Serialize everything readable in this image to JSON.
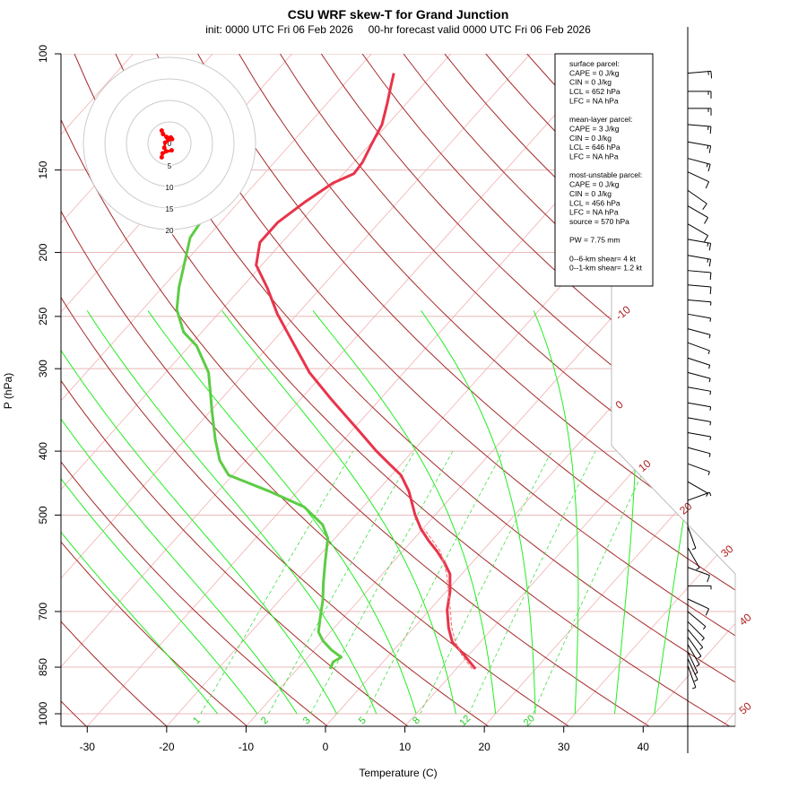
{
  "chart_data": {
    "type": "line",
    "subtype": "skew-T log-p",
    "title": "CSU WRF skew-T for Grand Junction",
    "subtitle": "init: 0000 UTC Fri 06 Feb 2026     00-hr forecast valid 0000 UTC Fri 06 Feb 2026",
    "xlabel": "Temperature (C)",
    "ylabel": "P (hPa)",
    "x_ticks": [
      -30,
      -20,
      -10,
      0,
      10,
      20,
      30,
      40
    ],
    "y_ticks": [
      100,
      150,
      200,
      250,
      300,
      400,
      500,
      700,
      850,
      1000
    ],
    "y_scale": "log",
    "ylim": [
      1050,
      100
    ],
    "isotherm_labels": [
      -10,
      0,
      10,
      20,
      30,
      40,
      50
    ],
    "mixing_ratio_labels": [
      1,
      2,
      3,
      5,
      8,
      12,
      20
    ],
    "colors": {
      "temperature": "#e8344a",
      "dewpoint": "#5ccc44",
      "parcel": "#f08080",
      "dry_adiabat": "#a52a2a",
      "moist_adiabat": "#22ee22",
      "isotherm": "#f0b0b0",
      "mixing_ratio": "#44dd44",
      "hodograph": "#ff0000"
    },
    "series": [
      {
        "key": "temperature",
        "points": [
          [
            855,
            12.4
          ],
          [
            813,
            9.3
          ],
          [
            779,
            6.5
          ],
          [
            741,
            4.4
          ],
          [
            696,
            2.2
          ],
          [
            653,
            0.5
          ],
          [
            614,
            -1.5
          ],
          [
            591,
            -3.4
          ],
          [
            568,
            -5.6
          ],
          [
            547,
            -7.9
          ],
          [
            525,
            -10.2
          ],
          [
            499,
            -12.6
          ],
          [
            460,
            -16.0
          ],
          [
            435,
            -18.8
          ],
          [
            419,
            -21.4
          ],
          [
            400,
            -24.6
          ],
          [
            372,
            -29.2
          ],
          [
            335,
            -35.9
          ],
          [
            304,
            -41.9
          ],
          [
            272,
            -47.7
          ],
          [
            248,
            -52.5
          ],
          [
            226,
            -56.8
          ],
          [
            209,
            -60.7
          ],
          [
            193,
            -62.8
          ],
          [
            180,
            -62.8
          ],
          [
            168,
            -61.7
          ],
          [
            157,
            -60.3
          ],
          [
            152,
            -58.7
          ],
          [
            146,
            -58.9
          ],
          [
            137,
            -59.8
          ],
          [
            128,
            -60.7
          ],
          [
            119,
            -62.4
          ],
          [
            112,
            -63.9
          ],
          [
            107,
            -65.0
          ]
        ]
      },
      {
        "key": "dewpoint",
        "points": [
          [
            855,
            -5.9
          ],
          [
            834,
            -6.3
          ],
          [
            821,
            -5.8
          ],
          [
            801,
            -7.8
          ],
          [
            776,
            -9.9
          ],
          [
            752,
            -11.5
          ],
          [
            718,
            -12.8
          ],
          [
            674,
            -14.5
          ],
          [
            634,
            -16.4
          ],
          [
            586,
            -18.7
          ],
          [
            542,
            -20.9
          ],
          [
            517,
            -23.1
          ],
          [
            486,
            -27.4
          ],
          [
            460,
            -33.6
          ],
          [
            435,
            -40.5
          ],
          [
            413,
            -43.3
          ],
          [
            384,
            -46.2
          ],
          [
            349,
            -49.7
          ],
          [
            304,
            -54.6
          ],
          [
            277,
            -59.1
          ],
          [
            264,
            -62.3
          ],
          [
            244,
            -65.7
          ],
          [
            226,
            -67.9
          ],
          [
            208,
            -69.9
          ],
          [
            190,
            -72.1
          ],
          [
            181,
            -72.5
          ],
          [
            168,
            -73.6
          ]
        ]
      },
      {
        "key": "parcel",
        "points": [
          [
            855,
            12.0
          ],
          [
            813,
            9.0
          ],
          [
            779,
            6.9
          ],
          [
            741,
            4.8
          ],
          [
            696,
            2.6
          ],
          [
            653,
            0.3
          ],
          [
            614,
            -1.9
          ],
          [
            568,
            -5.2
          ],
          [
            525,
            -9.8
          ]
        ]
      }
    ],
    "wind_barbs": [
      [
        107,
        85,
        15
      ],
      [
        114,
        90,
        15
      ],
      [
        121,
        90,
        15
      ],
      [
        128,
        95,
        15
      ],
      [
        136,
        100,
        15
      ],
      [
        144,
        105,
        15
      ],
      [
        151,
        115,
        10
      ],
      [
        161,
        125,
        10
      ],
      [
        170,
        120,
        10
      ],
      [
        181,
        120,
        10
      ],
      [
        191,
        100,
        15
      ],
      [
        202,
        100,
        15
      ],
      [
        213,
        95,
        10
      ],
      [
        224,
        95,
        10
      ],
      [
        236,
        95,
        5
      ],
      [
        248,
        100,
        5
      ],
      [
        261,
        105,
        5
      ],
      [
        274,
        110,
        5
      ],
      [
        289,
        108,
        5
      ],
      [
        304,
        105,
        5
      ],
      [
        320,
        100,
        5
      ],
      [
        338,
        100,
        5
      ],
      [
        356,
        100,
        5
      ],
      [
        375,
        100,
        5
      ],
      [
        395,
        105,
        5
      ],
      [
        418,
        110,
        5
      ],
      [
        445,
        120,
        5
      ],
      [
        475,
        70,
        5
      ],
      [
        520,
        160,
        5
      ],
      [
        560,
        150,
        5
      ],
      [
        600,
        110,
        10
      ],
      [
        640,
        90,
        5
      ],
      [
        670,
        115,
        10
      ],
      [
        700,
        130,
        5
      ],
      [
        725,
        135,
        5
      ],
      [
        745,
        140,
        5
      ],
      [
        765,
        145,
        5
      ],
      [
        785,
        150,
        5
      ],
      [
        805,
        155,
        5
      ],
      [
        825,
        155,
        5
      ],
      [
        845,
        160,
        5
      ]
    ],
    "hodograph": {
      "rings": [
        5,
        10,
        15,
        20
      ],
      "center_label": "0",
      "points_uv": [
        [
          -1.8,
          3.0
        ],
        [
          -1.5,
          2.2
        ],
        [
          -0.7,
          1.5
        ],
        [
          0.3,
          1.4
        ],
        [
          0.6,
          1.0
        ],
        [
          -0.3,
          0.8
        ],
        [
          -1.0,
          0.2
        ],
        [
          -1.2,
          -1.0
        ],
        [
          -0.8,
          -1.8
        ],
        [
          0.5,
          -1.6
        ],
        [
          -1.6,
          -2.3
        ],
        [
          -1.8,
          -3.2
        ]
      ]
    }
  },
  "stats_box": {
    "lines": [
      "surface parcel:",
      "CAPE = 0 J/kg",
      "CIN = 0 J/kg",
      "LCL = 652 hPa",
      "LFC = NA hPa",
      "",
      "mean-layer parcel:",
      "CAPE = 3 J/kg",
      "CIN = 0 J/kg",
      "LCL = 646 hPa",
      "LFC = NA hPa",
      "",
      "most-unstable parcel:",
      "CAPE = 0 J/kg",
      "CIN = 0 J/kg",
      "LCL = 456 hPa",
      "LFC = NA hPa",
      "source = 570 hPa",
      "",
      "PW =  7.75 mm",
      "",
      "0--6-km shear= 4 kt",
      "0--1-km shear= 1.2 kt"
    ]
  }
}
